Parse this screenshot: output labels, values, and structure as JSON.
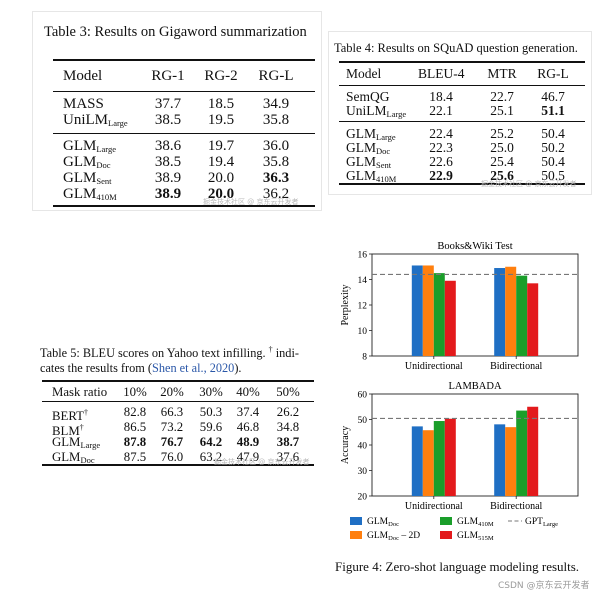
{
  "table3": {
    "caption": "Table 3: Results on Gigaword summarization",
    "headers": [
      "Model",
      "RG-1",
      "RG-2",
      "RG-L"
    ],
    "rows": [
      {
        "model": "MASS",
        "sub": "",
        "v": [
          "37.7",
          "18.5",
          "34.9"
        ]
      },
      {
        "model": "UniLM",
        "sub": "Large",
        "v": [
          "38.5",
          "19.5",
          "35.8"
        ]
      },
      {
        "model": "GLM",
        "sub": "Large",
        "v": [
          "38.6",
          "19.7",
          "36.0"
        ]
      },
      {
        "model": "GLM",
        "sub": "Doc",
        "v": [
          "38.5",
          "19.4",
          "35.8"
        ]
      },
      {
        "model": "GLM",
        "sub": "Sent",
        "v": [
          "38.9",
          "20.0",
          "36.3"
        ]
      },
      {
        "model": "GLM",
        "sub": "410M",
        "v": [
          "38.9",
          "20.0",
          "36.2"
        ]
      }
    ],
    "watermark": "掘金技术社区 @ 京东云开发者"
  },
  "table4": {
    "caption": "Table 4: Results on SQuAD question generation.",
    "headers": [
      "Model",
      "BLEU-4",
      "MTR",
      "RG-L"
    ],
    "rows": [
      {
        "model": "SemQG",
        "sub": "",
        "v": [
          "18.4",
          "22.7",
          "46.7"
        ]
      },
      {
        "model": "UniLM",
        "sub": "Large",
        "v": [
          "22.1",
          "25.1",
          "51.1"
        ]
      },
      {
        "model": "GLM",
        "sub": "Large",
        "v": [
          "22.4",
          "25.2",
          "50.4"
        ]
      },
      {
        "model": "GLM",
        "sub": "Doc",
        "v": [
          "22.3",
          "25.0",
          "50.2"
        ]
      },
      {
        "model": "GLM",
        "sub": "Sent",
        "v": [
          "22.6",
          "25.4",
          "50.4"
        ]
      },
      {
        "model": "GLM",
        "sub": "410M",
        "v": [
          "22.9",
          "25.6",
          "50.5"
        ]
      }
    ],
    "watermark": "掘金技术社区 @ 京东云开发者"
  },
  "table5": {
    "caption_line1": "Table 5: BLEU scores on Yahoo text infilling.",
    "caption_dagger": "†",
    "caption_tail1": " indi-",
    "caption_line2_pre": "cates the results from (",
    "caption_link": "Shen et al., 2020",
    "caption_line2_post": ").",
    "headers": [
      "Mask ratio",
      "10%",
      "20%",
      "30%",
      "40%",
      "50%"
    ],
    "rows": [
      {
        "model": "BERT",
        "sup": "†",
        "sub": "",
        "v": [
          "82.8",
          "66.3",
          "50.3",
          "37.4",
          "26.2"
        ]
      },
      {
        "model": "BLM",
        "sup": "†",
        "sub": "",
        "v": [
          "86.5",
          "73.2",
          "59.6",
          "46.8",
          "34.8"
        ]
      },
      {
        "model": "GLM",
        "sup": "",
        "sub": "Large",
        "v": [
          "87.8",
          "76.7",
          "64.2",
          "48.9",
          "38.7"
        ]
      },
      {
        "model": "GLM",
        "sup": "",
        "sub": "Doc",
        "v": [
          "87.5",
          "76.0",
          "63.2",
          "47.9",
          "37.6"
        ]
      }
    ],
    "watermark": "掘金技术社区 @ 京东云开发者"
  },
  "figure4": {
    "caption": "Figure 4: Zero-shot language modeling results.",
    "footer_watermark": "CSDN @京东云开发者",
    "colors": {
      "doc": "#1f6fc4",
      "doc2d": "#ff7f0e",
      "m410": "#1a9e2a",
      "m515": "#e31a1c",
      "gpt": "#777777"
    },
    "legend": {
      "doc": {
        "base": "GLM",
        "sub": "Doc",
        "tail": ""
      },
      "doc2d": {
        "base": "GLM",
        "sub": "Doc",
        "tail": " – 2D"
      },
      "m410": {
        "base": "GLM",
        "sub": "410M",
        "tail": ""
      },
      "m515": {
        "base": "GLM",
        "sub": "515M",
        "tail": ""
      },
      "gpt": {
        "base": "GPT",
        "sub": "Large",
        "tail": ""
      }
    }
  },
  "chart_data": [
    {
      "type": "bar",
      "title": "Books&Wiki Test",
      "ylabel": "Perplexity",
      "xlabel": "",
      "categories": [
        "Unidirectional",
        "Bidirectional"
      ],
      "ylim": [
        8,
        16
      ],
      "yticks": [
        8,
        10,
        12,
        14,
        16
      ],
      "series": [
        {
          "name": "GLMDoc",
          "values": [
            15.1,
            14.9
          ]
        },
        {
          "name": "GLMDoc – 2D",
          "values": [
            15.1,
            15.0
          ]
        },
        {
          "name": "GLM410M",
          "values": [
            14.5,
            14.3
          ]
        },
        {
          "name": "GLM515M",
          "values": [
            13.9,
            13.7
          ]
        }
      ],
      "reference_line": {
        "name": "GPTLarge",
        "value": 14.4,
        "style": "dashed"
      },
      "grid": false,
      "legend": "bottom"
    },
    {
      "type": "bar",
      "title": "LAMBADA",
      "ylabel": "Accuracy",
      "xlabel": "",
      "categories": [
        "Unidirectional",
        "Bidirectional"
      ],
      "ylim": [
        20,
        60
      ],
      "yticks": [
        20,
        30,
        40,
        50,
        60
      ],
      "series": [
        {
          "name": "GLMDoc",
          "values": [
            47.3,
            48.1
          ]
        },
        {
          "name": "GLMDoc – 2D",
          "values": [
            45.8,
            47.0
          ]
        },
        {
          "name": "GLM410M",
          "values": [
            49.4,
            53.5
          ]
        },
        {
          "name": "GLM515M",
          "values": [
            50.3,
            55.0
          ]
        }
      ],
      "reference_line": {
        "name": "GPTLarge",
        "value": 50.4,
        "style": "dashed"
      },
      "grid": false,
      "legend": "bottom"
    }
  ]
}
